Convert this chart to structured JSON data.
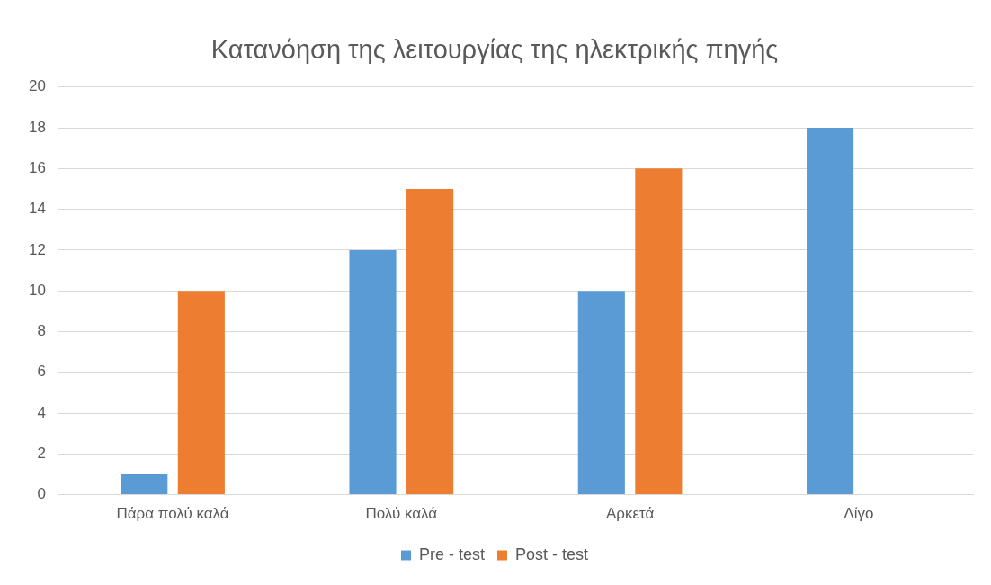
{
  "chart_data": {
    "type": "bar",
    "title": "Κατανόηση της λειτουργίας της ηλεκτρικής πηγής",
    "categories": [
      "Πάρα πολύ καλά",
      "Πολύ καλά",
      "Αρκετά",
      "Λίγο"
    ],
    "series": [
      {
        "name": "Pre - test",
        "color": "#5b9bd5",
        "values": [
          1,
          12,
          10,
          18
        ]
      },
      {
        "name": "Post - test",
        "color": "#ed7d31",
        "values": [
          10,
          15,
          16,
          0
        ]
      }
    ],
    "ylim": [
      0,
      20
    ],
    "yticks": [
      0,
      2,
      4,
      6,
      8,
      10,
      12,
      14,
      16,
      18,
      20
    ],
    "grid": "y",
    "legend": "bottom"
  }
}
